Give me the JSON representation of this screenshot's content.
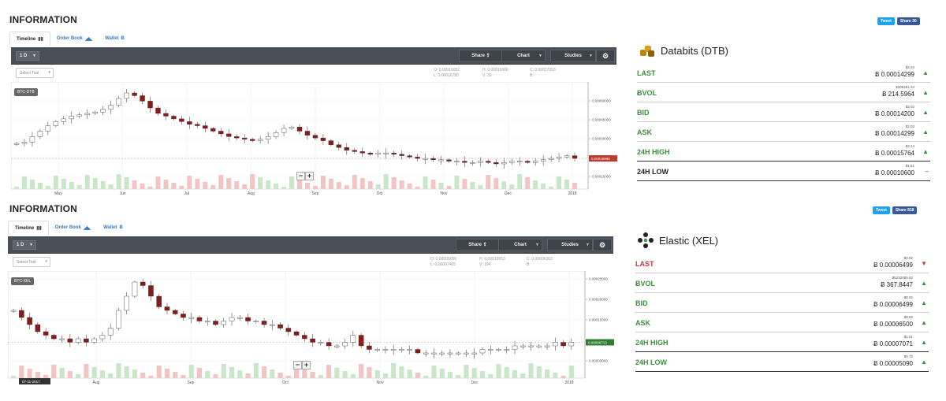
{
  "panels": [
    {
      "info_title": "INFORMATION",
      "tabs": [
        {
          "label": "Timeline",
          "icon": "bar-chart-icon",
          "active": true
        },
        {
          "label": "Order Book",
          "icon": "area-chart-icon",
          "active": false
        },
        {
          "label": "Wallet",
          "icon": "bitcoin-icon",
          "active": false
        }
      ],
      "toolbar": {
        "interval": "1 D",
        "share": "Share",
        "chart": "Chart",
        "studies": "Studies"
      },
      "select_tool": "Select Tool",
      "ohlc": {
        "o": "O: 0.00016052",
        "h": "H: 0.00016066",
        "c": "C: 0.00017003",
        "l": "L: 0.00016780",
        "v": "V: 39",
        "b": "B:"
      },
      "symbol": "BTC-DTB",
      "social": {
        "tweet": "Tweet",
        "share": "Share 30"
      },
      "coin": {
        "name": "Databits (DTB)",
        "icon": "databits-logo-icon"
      },
      "stats": [
        {
          "label": "LAST",
          "usd": "$2.03",
          "value": "Ƀ 0.00014299",
          "trend": "up",
          "color": "green"
        },
        {
          "label": "ɃVOL",
          "usd": "$305481.34",
          "value": "Ƀ 214.5964",
          "trend": "up",
          "color": "green"
        },
        {
          "label": "BID",
          "usd": "$2.02",
          "value": "Ƀ 0.00014200",
          "trend": "up",
          "color": "green"
        },
        {
          "label": "ASK",
          "usd": "$2.03",
          "value": "Ƀ 0.00014299",
          "trend": "up",
          "color": "green"
        },
        {
          "label": "24H HIGH",
          "usd": "$2.24",
          "value": "Ƀ 0.00015764",
          "trend": "up",
          "color": "green"
        },
        {
          "label": "24H LOW",
          "usd": "$1.51",
          "value": "Ƀ 0.00010600",
          "trend": "flat",
          "color": "black"
        }
      ],
      "chart_data": {
        "type": "candlestick",
        "x_ticks": [
          "May",
          "Jun",
          "Jul",
          "Aug",
          "Sep",
          "Oct",
          "Nov",
          "Dec",
          "2018"
        ],
        "y_ticks": [
          "0.00060000",
          "0.00045000",
          "0.00030000",
          "0.00025000",
          "0.00015000"
        ],
        "current_price_label": "0.00015990",
        "current_price_color": "#c0392b",
        "close_series": [
          0.00027,
          0.00028,
          0.00032,
          0.00036,
          0.0004,
          0.00043,
          0.00045,
          0.00047,
          0.00048,
          0.00049,
          0.0005,
          0.00052,
          0.00055,
          0.0006,
          0.00064,
          0.00062,
          0.00058,
          0.00053,
          0.00049,
          0.00047,
          0.00045,
          0.00043,
          0.00041,
          0.0004,
          0.00038,
          0.00036,
          0.00034,
          0.00032,
          0.00031,
          0.0003,
          0.00029,
          0.0003,
          0.00032,
          0.00035,
          0.00038,
          0.00039,
          0.00036,
          0.00033,
          0.00031,
          0.00029,
          0.00026,
          0.00024,
          0.00022,
          0.00021,
          0.0002,
          0.00019,
          0.0002,
          0.0002,
          0.00019,
          0.00018,
          0.00017,
          0.00016,
          0.00016,
          0.00015,
          0.00015,
          0.00014,
          0.00014,
          0.00013,
          0.00013,
          0.00014,
          0.00013,
          0.00012,
          0.00013,
          0.00014,
          0.00014,
          0.00013,
          0.00014,
          0.00015,
          0.00016,
          0.00017,
          0.00018,
          0.00016
        ]
      }
    },
    {
      "info_title": "INFORMATION",
      "tabs": [
        {
          "label": "Timeline",
          "icon": "bar-chart-icon",
          "active": true
        },
        {
          "label": "Order Book",
          "icon": "area-chart-icon",
          "active": false
        },
        {
          "label": "Wallet",
          "icon": "bitcoin-icon",
          "active": false
        }
      ],
      "toolbar": {
        "interval": "1 D",
        "share": "Share",
        "chart": "Chart",
        "studies": "Studies"
      },
      "select_tool": "Select Tool",
      "ohlc": {
        "o": "O: 0.00006056",
        "h": "H: 0.00010653",
        "c": "C: 0.00006363",
        "l": "L: 0.00007405",
        "v": "V: 194",
        "b": "B:"
      },
      "symbol": "BTC-XEL",
      "date_label": "07-11-2017",
      "social": {
        "tweet": "Tweet",
        "share": "Share 818"
      },
      "coin": {
        "name": "Elastic (XEL)",
        "icon": "elastic-logo-icon"
      },
      "stats": [
        {
          "label": "LAST",
          "usd": "$0.92",
          "value": "Ƀ 0.00006499",
          "trend": "down",
          "color": "red"
        },
        {
          "label": "ɃVOL",
          "usd": "$5232085.82",
          "value": "Ƀ 367.8447",
          "trend": "up",
          "color": "green"
        },
        {
          "label": "BID",
          "usd": "$0.92",
          "value": "Ƀ 0.00006499",
          "trend": "up",
          "color": "green"
        },
        {
          "label": "ASK",
          "usd": "$0.92",
          "value": "Ƀ 0.00006500",
          "trend": "up",
          "color": "green"
        },
        {
          "label": "24H HIGH",
          "usd": "$1.01",
          "value": "Ƀ 0.00007071",
          "trend": "up",
          "color": "green"
        },
        {
          "label": "24H LOW",
          "usd": "$0.72",
          "value": "Ƀ 0.00005090",
          "trend": "up",
          "color": "green"
        }
      ],
      "chart_data": {
        "type": "candlestick",
        "x_ticks": [
          "Aug",
          "Sep",
          "Oct",
          "Nov",
          "Dec",
          "2018"
        ],
        "y_ticks": [
          "0.00025000",
          "0.00020000",
          "0.00015000",
          "0.00010000",
          "0.00005000"
        ],
        "current_price_label": "0.00006713",
        "current_price_color": "#2e7d32",
        "close_series": [
          0.00016,
          0.00014,
          0.00012,
          0.0001,
          9e-05,
          8e-05,
          8e-05,
          7e-05,
          8e-05,
          7e-05,
          8e-05,
          9e-05,
          0.00011,
          0.00016,
          0.0002,
          0.00024,
          0.00023,
          0.0002,
          0.00017,
          0.00016,
          0.00015,
          0.00014,
          0.00014,
          0.00013,
          0.00013,
          0.00012,
          0.00013,
          0.00014,
          0.00014,
          0.00013,
          0.00013,
          0.00012,
          0.00012,
          0.00011,
          0.0001,
          9e-05,
          8e-05,
          7e-05,
          7e-05,
          6e-05,
          6e-05,
          7e-05,
          9e-05,
          6e-05,
          5e-05,
          5e-05,
          5e-05,
          5e-05,
          5e-05,
          5e-05,
          4e-05,
          4e-05,
          4e-05,
          4e-05,
          4e-05,
          4e-05,
          4e-05,
          4e-05,
          5e-05,
          5e-05,
          5e-05,
          5e-05,
          6e-05,
          6e-05,
          6e-05,
          6e-05,
          6e-05,
          7e-05,
          6e-05,
          7e-05
        ]
      }
    }
  ]
}
